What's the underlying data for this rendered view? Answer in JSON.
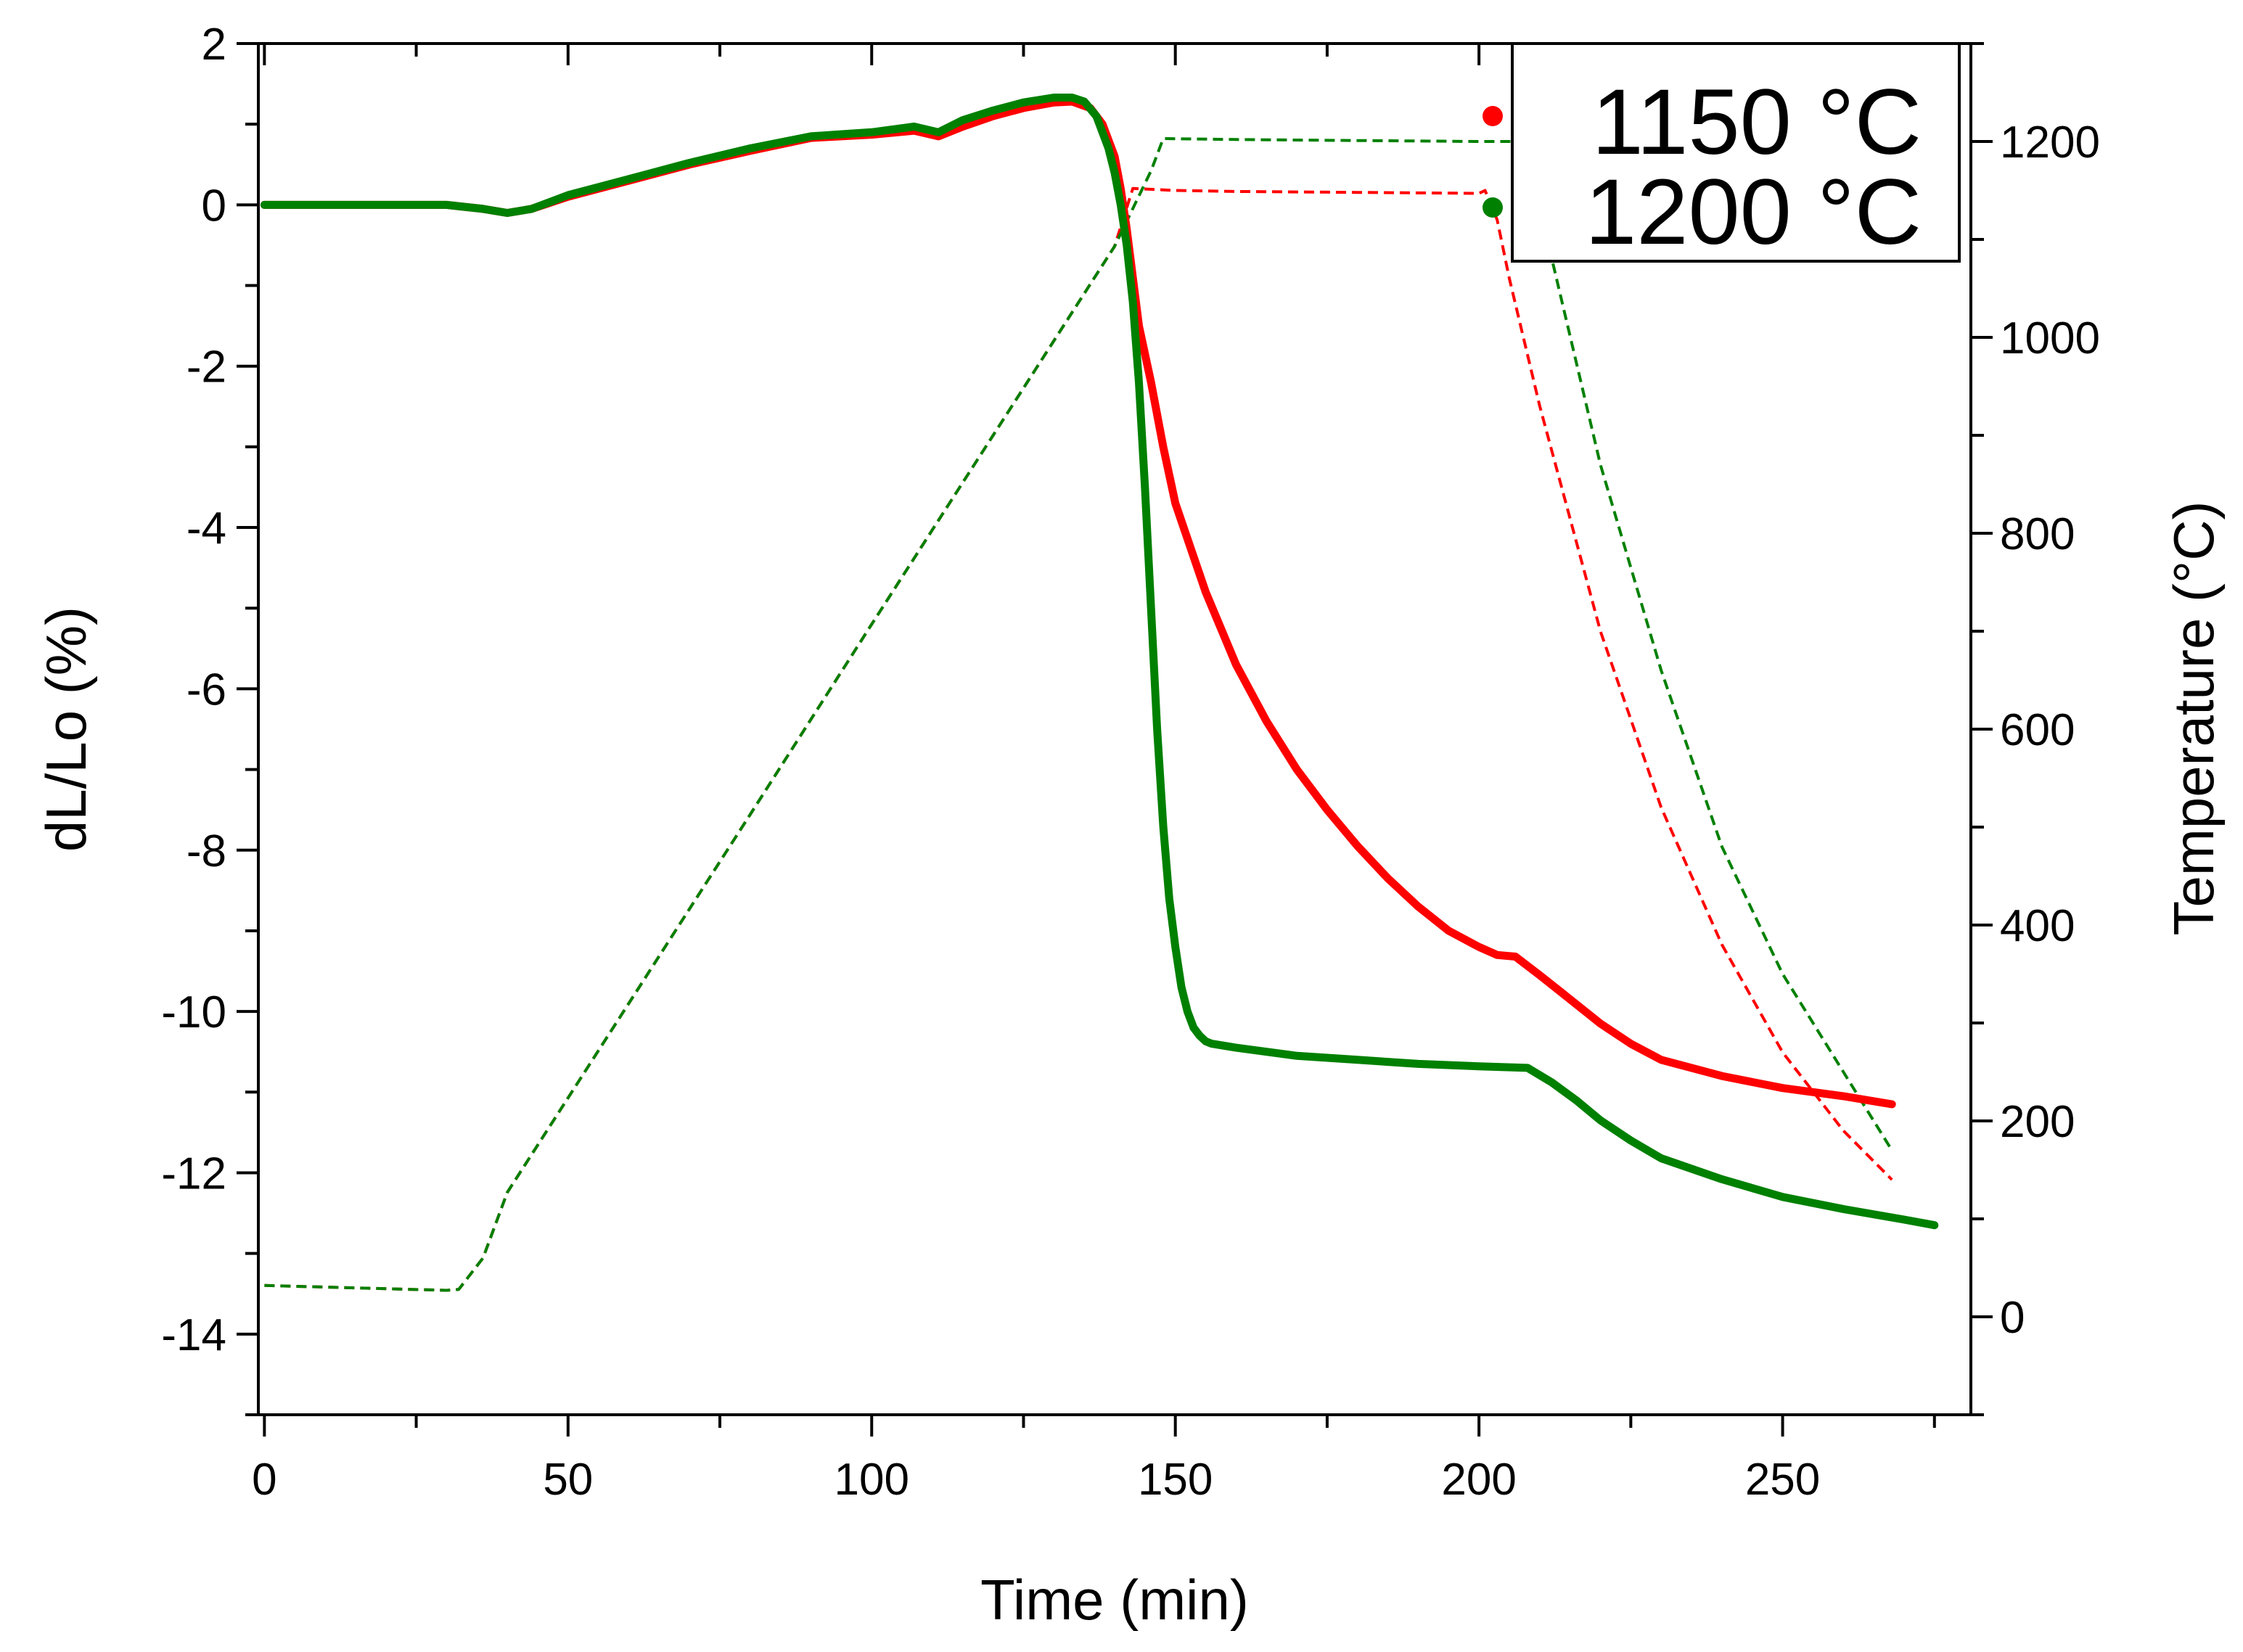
{
  "chart_data": {
    "type": "line",
    "title": "",
    "xlabel": "Time (min)",
    "ylabel_left": "dL/Lo (%)",
    "ylabel_right": "Temperature (°C)",
    "xlim": [
      -1,
      281
    ],
    "ylim_left": [
      -15,
      2
    ],
    "ylim_right": [
      -100,
      1300
    ],
    "x_ticks": [
      0,
      50,
      100,
      150,
      200,
      250
    ],
    "x_tick_labels": [
      "0",
      "50",
      "100",
      "150",
      "200",
      "250"
    ],
    "y_left_ticks": [
      2,
      0,
      -2,
      -4,
      -6,
      -8,
      -10,
      -12,
      -14
    ],
    "y_left_tick_labels": [
      "2",
      "0",
      "-2",
      "-4",
      "-6",
      "-8",
      "-10",
      "-12",
      "-14"
    ],
    "y_right_ticks": [
      1200,
      1000,
      800,
      600,
      400,
      200,
      0
    ],
    "y_right_tick_labels": [
      "1200",
      "1000",
      "800",
      "600",
      "400",
      "200",
      "0"
    ],
    "grid": false,
    "legend_position": "top-right",
    "legend": [
      {
        "label": "1150 °C",
        "color": "#ff0000"
      },
      {
        "label": "1200 °C",
        "color": "#008000"
      }
    ],
    "series": [
      {
        "name": "1150 °C dL/Lo",
        "axis": "left",
        "style": "solid",
        "color": "#ff0000",
        "x": [
          0,
          30,
          36,
          40,
          44,
          50,
          60,
          70,
          80,
          90,
          100,
          107,
          111,
          115,
          120,
          125,
          130,
          133,
          136,
          138,
          140,
          141,
          142,
          143,
          144,
          146,
          148,
          150,
          155,
          160,
          165,
          170,
          175,
          180,
          185,
          190,
          195,
          200,
          203,
          206,
          210,
          215,
          220,
          225,
          230,
          240,
          250,
          260,
          268
        ],
        "y": [
          0,
          0,
          -0.05,
          -0.1,
          -0.05,
          0.1,
          0.3,
          0.5,
          0.67,
          0.83,
          0.87,
          0.92,
          0.85,
          0.97,
          1.1,
          1.2,
          1.27,
          1.28,
          1.2,
          1.0,
          0.6,
          0.2,
          -0.3,
          -0.9,
          -1.5,
          -2.2,
          -3.0,
          -3.7,
          -4.8,
          -5.7,
          -6.4,
          -7.0,
          -7.5,
          -7.95,
          -8.35,
          -8.7,
          -9.0,
          -9.2,
          -9.3,
          -9.32,
          -9.55,
          -9.85,
          -10.15,
          -10.4,
          -10.6,
          -10.8,
          -10.95,
          -11.05,
          -11.15
        ]
      },
      {
        "name": "1200 °C dL/Lo",
        "axis": "left",
        "style": "solid",
        "color": "#008000",
        "x": [
          0,
          30,
          36,
          40,
          44,
          50,
          60,
          70,
          80,
          90,
          100,
          107,
          111,
          115,
          120,
          125,
          130,
          133,
          135,
          137,
          139,
          140,
          141,
          142,
          143,
          144,
          145,
          146,
          147,
          148,
          149,
          150,
          151,
          152,
          153,
          154,
          155,
          156,
          160,
          170,
          180,
          190,
          200,
          208,
          212,
          216,
          220,
          225,
          230,
          240,
          250,
          260,
          270,
          275
        ],
        "y": [
          0,
          0,
          -0.05,
          -0.1,
          -0.05,
          0.12,
          0.32,
          0.52,
          0.7,
          0.85,
          0.9,
          0.97,
          0.9,
          1.05,
          1.17,
          1.27,
          1.33,
          1.33,
          1.28,
          1.1,
          0.7,
          0.4,
          0.0,
          -0.5,
          -1.2,
          -2.2,
          -3.5,
          -5.0,
          -6.5,
          -7.7,
          -8.6,
          -9.2,
          -9.7,
          -10.0,
          -10.2,
          -10.3,
          -10.37,
          -10.4,
          -10.45,
          -10.55,
          -10.6,
          -10.65,
          -10.68,
          -10.7,
          -10.88,
          -11.1,
          -11.35,
          -11.6,
          -11.82,
          -12.08,
          -12.3,
          -12.45,
          -12.58,
          -12.65
        ]
      },
      {
        "name": "1150 °C temperature",
        "axis": "right",
        "style": "dashed",
        "color": "#ff0000",
        "x": [
          0,
          30,
          32,
          36,
          40,
          60,
          80,
          100,
          120,
          140,
          143,
          150,
          160,
          180,
          200,
          201,
          203,
          205,
          210,
          220,
          230,
          240,
          250,
          260,
          268
        ],
        "y": [
          32,
          27,
          28,
          60,
          127,
          320,
          513,
          707,
          900,
          1093,
          1152,
          1150,
          1149,
          1148,
          1147,
          1150,
          1120,
          1060,
          930,
          700,
          520,
          380,
          270,
          190,
          140
        ]
      },
      {
        "name": "1200 °C temperature",
        "axis": "right",
        "style": "dashed",
        "color": "#008000",
        "x": [
          0,
          30,
          32,
          36,
          40,
          60,
          80,
          100,
          120,
          140,
          146,
          148,
          160,
          180,
          200,
          206,
          208,
          212,
          220,
          230,
          240,
          250,
          260,
          268
        ],
        "y": [
          32,
          27,
          28,
          60,
          127,
          320,
          513,
          707,
          900,
          1093,
          1170,
          1203,
          1202,
          1201,
          1200,
          1200,
          1180,
          1080,
          870,
          660,
          480,
          350,
          250,
          170
        ]
      }
    ]
  }
}
